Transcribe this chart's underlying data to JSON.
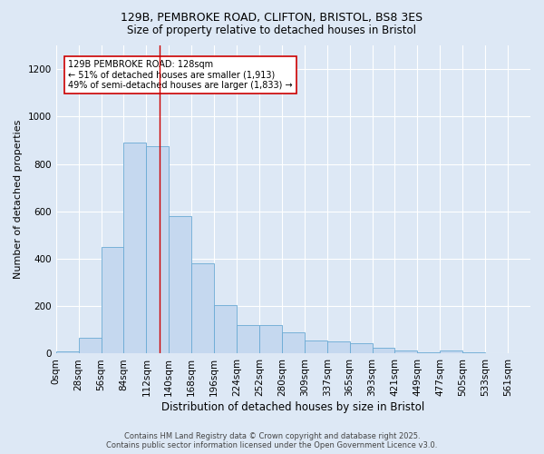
{
  "title1": "129B, PEMBROKE ROAD, CLIFTON, BRISTOL, BS8 3ES",
  "title2": "Size of property relative to detached houses in Bristol",
  "xlabel": "Distribution of detached houses by size in Bristol",
  "ylabel": "Number of detached properties",
  "bin_labels": [
    "0sqm",
    "28sqm",
    "56sqm",
    "84sqm",
    "112sqm",
    "140sqm",
    "168sqm",
    "196sqm",
    "224sqm",
    "252sqm",
    "280sqm",
    "309sqm",
    "337sqm",
    "365sqm",
    "393sqm",
    "421sqm",
    "449sqm",
    "477sqm",
    "505sqm",
    "533sqm",
    "561sqm"
  ],
  "bar_heights": [
    8,
    65,
    450,
    890,
    875,
    580,
    380,
    205,
    120,
    120,
    88,
    55,
    50,
    45,
    25,
    12,
    5,
    15,
    5,
    2,
    2
  ],
  "bar_color": "#c5d8ef",
  "bar_edge_color": "#6aaad4",
  "vline_x": 128,
  "vline_color": "#cc0000",
  "annotation_text": "129B PEMBROKE ROAD: 128sqm\n← 51% of detached houses are smaller (1,913)\n49% of semi-detached houses are larger (1,833) →",
  "annotation_box_color": "#ffffff",
  "annotation_box_edge": "#cc0000",
  "ylim": [
    0,
    1300
  ],
  "yticks": [
    0,
    200,
    400,
    600,
    800,
    1000,
    1200
  ],
  "footer1": "Contains HM Land Registry data © Crown copyright and database right 2025.",
  "footer2": "Contains public sector information licensed under the Open Government Licence v3.0.",
  "bg_color": "#dde8f5",
  "plot_bg_color": "#dde8f5"
}
